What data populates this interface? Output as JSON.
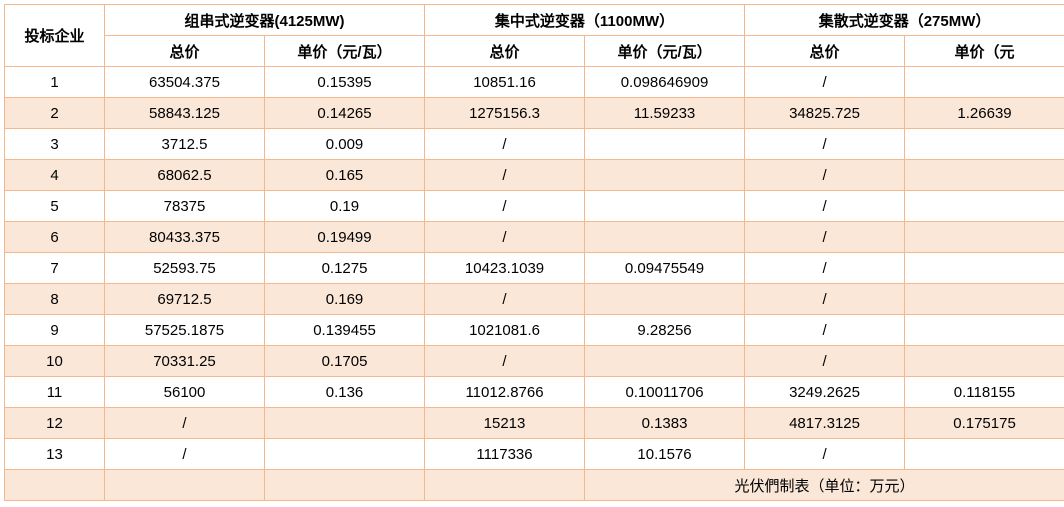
{
  "colors": {
    "border": "#f5b88c",
    "row_alt_bg": "#fbe7d8",
    "row_bg": "#ffffff",
    "text": "#000000"
  },
  "header": {
    "bidder": "投标企业",
    "groups": [
      {
        "title": "组串式逆变器(4125MW)",
        "sub": [
          "总价",
          "单价（元/瓦）"
        ]
      },
      {
        "title": "集中式逆变器（1100MW）",
        "sub": [
          "总价",
          "单价（元/瓦）"
        ]
      },
      {
        "title": "集散式逆变器（275MW）",
        "sub": [
          "总价",
          "单价（元"
        ]
      }
    ]
  },
  "rows": [
    {
      "id": "1",
      "cells": [
        "63504.375",
        "0.15395",
        "10851.16",
        "0.098646909",
        "/",
        ""
      ]
    },
    {
      "id": "2",
      "cells": [
        "58843.125",
        "0.14265",
        "1275156.3",
        "11.59233",
        "34825.725",
        "1.26639"
      ]
    },
    {
      "id": "3",
      "cells": [
        "3712.5",
        "0.009",
        "/",
        "",
        "/",
        ""
      ]
    },
    {
      "id": "4",
      "cells": [
        "68062.5",
        "0.165",
        "/",
        "",
        "/",
        ""
      ]
    },
    {
      "id": "5",
      "cells": [
        "78375",
        "0.19",
        "/",
        "",
        "/",
        ""
      ]
    },
    {
      "id": "6",
      "cells": [
        "80433.375",
        "0.19499",
        "/",
        "",
        "/",
        ""
      ]
    },
    {
      "id": "7",
      "cells": [
        "52593.75",
        "0.1275",
        "10423.1039",
        "0.09475549",
        "/",
        ""
      ]
    },
    {
      "id": "8",
      "cells": [
        "69712.5",
        "0.169",
        "/",
        "",
        "/",
        ""
      ]
    },
    {
      "id": "9",
      "cells": [
        "57525.1875",
        "0.139455",
        "1021081.6",
        "9.28256",
        "/",
        ""
      ]
    },
    {
      "id": "10",
      "cells": [
        "70331.25",
        "0.1705",
        "/",
        "",
        "/",
        ""
      ]
    },
    {
      "id": "11",
      "cells": [
        "56100",
        "0.136",
        "11012.8766",
        "0.10011706",
        "3249.2625",
        "0.118155"
      ]
    },
    {
      "id": "12",
      "cells": [
        "/",
        "",
        "15213",
        "0.1383",
        "4817.3125",
        "0.175175"
      ]
    },
    {
      "id": "13",
      "cells": [
        "/",
        "",
        "1117336",
        "10.1576",
        "/",
        ""
      ]
    }
  ],
  "footer_note": "光伏們制表（单位：万元）"
}
